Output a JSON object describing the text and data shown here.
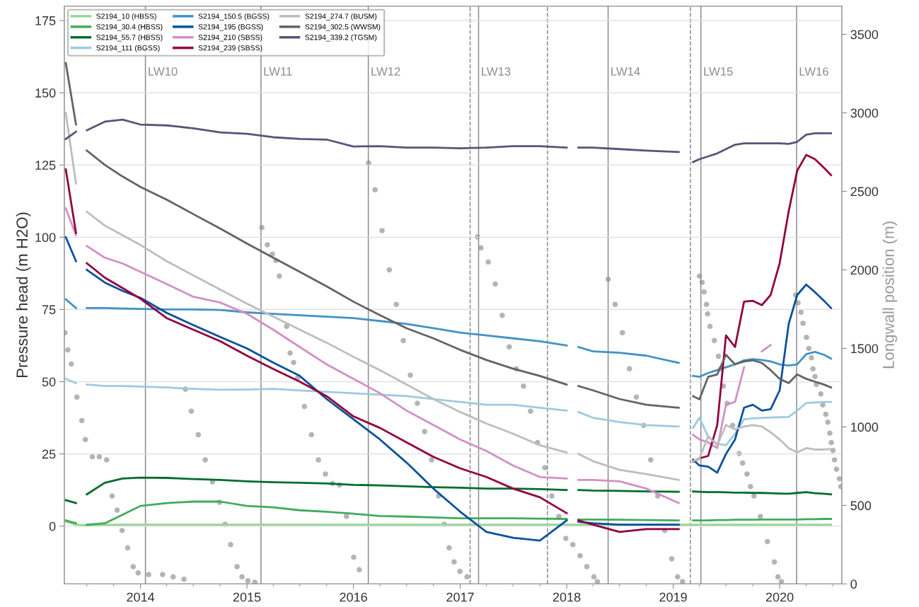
{
  "chart_data": {
    "type": "line",
    "ylabel": "Pressure head (m H2O)",
    "y2label": "Longwall position (m)",
    "x": [
      "2013-04-20",
      "2013-05-25",
      "2013-06-15",
      "2013-07-01",
      "2013-09-01",
      "2013-11-01",
      "2014-01-01",
      "2014-04-01",
      "2014-07-01",
      "2014-10-01",
      "2015-01-01",
      "2015-04-01",
      "2015-07-01",
      "2015-10-01",
      "2016-01-01",
      "2016-04-01",
      "2016-07-01",
      "2016-10-01",
      "2017-01-01",
      "2017-04-01",
      "2017-07-01",
      "2017-10-01",
      "2018-01-01",
      "2018-01-20",
      "2018-02-10",
      "2018-04-01",
      "2018-07-01",
      "2018-10-01",
      "2019-01-20",
      "2019-02-15",
      "2019-03-10",
      "2019-04-01",
      "2019-05-01",
      "2019-06-01",
      "2019-07-01",
      "2019-08-01",
      "2019-09-01",
      "2019-10-01",
      "2019-11-01",
      "2019-12-01",
      "2020-01-01",
      "2020-02-01",
      "2020-03-01",
      "2020-04-01",
      "2020-05-01",
      "2020-06-01",
      "2020-06-25"
    ],
    "series": [
      {
        "name": "S2194_10 (HBSS)",
        "color": "#98d594",
        "values": [
          1.5,
          0.5,
          0.4,
          0.3,
          0.5,
          0.5,
          0.5,
          0.5,
          0.5,
          0.5,
          0.5,
          0.5,
          0.5,
          0.5,
          0.5,
          0.5,
          0.5,
          0.5,
          0.5,
          0.5,
          0.5,
          0.5,
          0.5,
          0.5,
          0.5,
          0.5,
          0.5,
          0.5,
          0.5,
          0.5,
          0.5,
          0.5,
          0.5,
          0.5,
          0.5,
          0.5,
          0.5,
          0.5,
          0.5,
          0.5,
          0.5,
          0.5,
          0.5,
          0.5,
          0.5,
          0.5,
          0.5
        ]
      },
      {
        "name": "S2194_30.4 (HBSS)",
        "color": "#41ab5d",
        "values": [
          2,
          1,
          null,
          0.5,
          1,
          4,
          7,
          8,
          8.5,
          8.5,
          7,
          6.5,
          5.5,
          5,
          4.3,
          3.5,
          3.3,
          3,
          2.7,
          2.7,
          2.7,
          2.6,
          2.5,
          null,
          2.3,
          2.3,
          2.2,
          2.1,
          2,
          null,
          2,
          2,
          2,
          2.1,
          2.1,
          2.2,
          2.2,
          2.2,
          2.3,
          2.3,
          2.3,
          2.3,
          2.3,
          2.4,
          2.4,
          2.5,
          2.5
        ]
      },
      {
        "name": "S2194_55.7 (HBSS)",
        "color": "#006d2c",
        "values": [
          9,
          8,
          null,
          11,
          15,
          16.5,
          16.8,
          16.7,
          16.3,
          16,
          15.5,
          15.2,
          15,
          14.8,
          14.3,
          14.1,
          13.8,
          13.5,
          13.3,
          13,
          13,
          12.8,
          12.5,
          null,
          12.5,
          12.3,
          12.2,
          12,
          11.9,
          null,
          12,
          11.9,
          11.8,
          11.8,
          11.7,
          11.6,
          11.6,
          11.5,
          11.5,
          11.4,
          11.3,
          11.2,
          11.5,
          11.8,
          11.4,
          11.2,
          11
        ]
      },
      {
        "name": "S2194_111 (BGSS)",
        "color": "#9ecae1",
        "values": [
          51,
          49.5,
          null,
          49,
          48.5,
          48.5,
          48.3,
          48,
          47.5,
          47.2,
          47.3,
          47.5,
          47,
          46.5,
          46,
          45.5,
          45,
          44,
          43,
          42,
          42,
          41,
          40,
          null,
          39.5,
          37.5,
          36,
          35,
          34.5,
          null,
          34,
          37.5,
          31,
          28.5,
          28,
          32,
          37,
          37.3,
          37.5,
          37.6,
          37.7,
          37.8,
          40,
          42.6,
          42.8,
          43,
          43
        ]
      },
      {
        "name": "S2194_150.5 (BGSS)",
        "color": "#4292c6",
        "values": [
          78.5,
          75.5,
          null,
          75.5,
          75.5,
          75.3,
          75.2,
          75,
          75,
          74.8,
          74,
          73.5,
          73,
          72.5,
          72,
          71,
          70,
          68.5,
          67,
          66,
          65,
          64,
          62.5,
          null,
          62,
          60.5,
          60,
          59,
          56.5,
          null,
          52,
          51.7,
          53,
          54,
          55,
          56,
          57.4,
          57.8,
          57.5,
          57,
          56,
          55.6,
          56,
          59.5,
          60.3,
          59.3,
          58
        ]
      },
      {
        "name": "S2194_195 (BGSS)",
        "color": "#08519c",
        "values": [
          100,
          91.7,
          null,
          88.7,
          84.3,
          81.4,
          79,
          73.8,
          69.6,
          65.5,
          61.5,
          56.6,
          52,
          44,
          37,
          30,
          22,
          13,
          5,
          -2,
          -4,
          -5,
          2,
          null,
          1.5,
          1,
          0.5,
          0.5,
          0.5,
          null,
          23,
          21,
          20.6,
          18.5,
          25,
          30,
          41,
          42,
          40,
          40.5,
          47,
          70,
          80,
          83.6,
          81,
          78,
          75.5
        ]
      },
      {
        "name": "S2194_210 (SBSS)",
        "color": "#d38fc6",
        "values": [
          110,
          100.7,
          null,
          97,
          92.9,
          90.9,
          88,
          83.8,
          79.4,
          77.4,
          73.5,
          68,
          62,
          56,
          51,
          46,
          40,
          35,
          30,
          26,
          21,
          17,
          16.5,
          null,
          16,
          16,
          15.5,
          13,
          8,
          null,
          31.6,
          30,
          29,
          27,
          42,
          43,
          55,
          null,
          60.5,
          62.7,
          null,
          null,
          null,
          null,
          null,
          null,
          null
        ]
      },
      {
        "name": "S2194_239 (SBSS)",
        "color": "#91003f",
        "values": [
          123.5,
          101.5,
          null,
          91,
          86,
          82.4,
          78.7,
          72,
          68,
          64,
          59,
          54.4,
          50,
          45,
          38,
          34,
          29,
          24,
          20,
          17,
          13,
          10,
          4.5,
          null,
          2,
          0.5,
          -2,
          -1,
          -1,
          null,
          22.3,
          23.5,
          24.3,
          35,
          66,
          62,
          77.7,
          78,
          76.5,
          80,
          91,
          109,
          123,
          128.5,
          127,
          124,
          121.5
        ]
      },
      {
        "name": "S2194_274.7 (BUSM)",
        "color": "#bdbdbd",
        "values": [
          143,
          118.6,
          null,
          108.8,
          104,
          100.7,
          97.3,
          91.7,
          86.8,
          81.9,
          77,
          72.5,
          68,
          63.5,
          58.6,
          54,
          49,
          44,
          39.5,
          35.5,
          32,
          28,
          25.5,
          null,
          25,
          22.5,
          19.5,
          18,
          16,
          null,
          22.5,
          23.5,
          31,
          28,
          35,
          33.5,
          34.5,
          35,
          34.5,
          32.5,
          30,
          27,
          25.5,
          27,
          26.5,
          26.5,
          26.7
        ]
      },
      {
        "name": "S2194_302.5 (WWSM)",
        "color": "#636363",
        "values": [
          160.3,
          139,
          null,
          130,
          125,
          121,
          117.4,
          113,
          108,
          103,
          97.8,
          92.9,
          88,
          83,
          77.7,
          73,
          68.5,
          65,
          61,
          57.5,
          54.5,
          52,
          49,
          null,
          48.5,
          47,
          44,
          42,
          41,
          null,
          45,
          43.9,
          51.7,
          52.5,
          59.3,
          56,
          57,
          57.4,
          56.5,
          54,
          51,
          49.5,
          52.5,
          51,
          50,
          49,
          48
        ]
      },
      {
        "name": "S2194_339.2 (TGSM)",
        "color": "#54567a",
        "values": [
          134,
          136.5,
          null,
          137,
          140,
          140.7,
          139,
          138.7,
          137.7,
          136.3,
          135.8,
          134.6,
          134,
          133.8,
          131.4,
          131.5,
          131,
          131,
          130.8,
          131,
          131.5,
          131.5,
          131,
          null,
          131,
          131,
          130.5,
          130,
          129.5,
          null,
          126,
          127,
          128,
          129,
          130.5,
          132,
          132.5,
          132.5,
          132.5,
          132.5,
          132.5,
          132.3,
          133,
          135.5,
          136,
          136,
          136
        ]
      },
      {
        "type": "scatter",
        "axis": "y2",
        "color": "#b4b4b4",
        "marker": "circle",
        "x": [
          "2013-04-17",
          "2013-04-27",
          "2013-05-09",
          "2013-05-28",
          "2013-06-14",
          "2013-06-26",
          "2013-07-20",
          "2013-08-13",
          "2013-09-07",
          "2013-09-26",
          "2013-10-13",
          "2013-10-30",
          "2013-11-18",
          "2013-12-07",
          "2013-12-24",
          "2014-01-29",
          "2014-03-18",
          "2014-04-23",
          "2014-05-30",
          "2014-06-04",
          "2014-06-24",
          "2014-07-18",
          "2014-08-11",
          "2014-09-05",
          "2014-09-29",
          "2014-10-18",
          "2014-11-06",
          "2014-11-28",
          "2014-12-15",
          "2015-01-04",
          "2015-01-28",
          "2015-02-21",
          "2015-03-12",
          "2015-03-29",
          "2015-04-10",
          "2015-04-22",
          "2015-05-17",
          "2015-05-29",
          "2015-06-10",
          "2015-06-23",
          "2015-07-17",
          "2015-08-10",
          "2015-09-03",
          "2015-09-27",
          "2015-10-21",
          "2015-11-14",
          "2015-12-08",
          "2016-01-02",
          "2016-01-21",
          "2016-02-22",
          "2016-03-15",
          "2016-04-08",
          "2016-05-03",
          "2016-05-27",
          "2016-06-20",
          "2016-07-14",
          "2016-08-07",
          "2016-09-01",
          "2016-09-25",
          "2016-10-19",
          "2016-11-07",
          "2016-11-24",
          "2016-12-11",
          "2016-12-31",
          "2017-01-24",
          "2017-03-01",
          "2017-03-13",
          "2017-04-07",
          "2017-05-01",
          "2017-05-25",
          "2017-06-18",
          "2017-07-12",
          "2017-08-06",
          "2017-08-30",
          "2017-09-23",
          "2017-10-18",
          "2017-11-11",
          "2017-12-05",
          "2017-12-29",
          "2018-01-22",
          "2018-02-16",
          "2018-03-11",
          "2018-04-04",
          "2018-04-16",
          "2018-05-23",
          "2018-06-16",
          "2018-07-11",
          "2018-08-04",
          "2018-08-28",
          "2018-09-22",
          "2018-10-16",
          "2018-11-09",
          "2018-12-03",
          "2018-12-27",
          "2019-01-16",
          "2019-02-02",
          "2019-04-01",
          "2019-04-10",
          "2019-04-17",
          "2019-04-25",
          "2019-04-29",
          "2019-05-07",
          "2019-05-22",
          "2019-06-05",
          "2019-06-13",
          "2019-06-22",
          "2019-07-05",
          "2019-07-24",
          "2019-08-15",
          "2019-08-27",
          "2019-09-11",
          "2019-09-23",
          "2019-10-05",
          "2019-10-27",
          "2019-11-20",
          "2019-12-14",
          "2019-12-26",
          "2020-01-07",
          "2020-02-25",
          "2020-03-04",
          "2020-03-14",
          "2020-03-21",
          "2020-04-02",
          "2020-04-10",
          "2020-04-19",
          "2020-04-24",
          "2020-05-01",
          "2020-05-06",
          "2020-05-21",
          "2020-05-28",
          "2020-06-07",
          "2020-06-14",
          "2020-06-21",
          "2020-06-26",
          "2020-07-02",
          "2020-07-07",
          "2020-07-14",
          "2020-07-24",
          "2020-07-29"
        ],
        "values": [
          1600,
          1490,
          1400,
          1190,
          1040,
          920,
          810,
          810,
          790,
          560,
          470,
          340,
          230,
          110,
          70,
          60,
          60,
          45,
          30,
          1240,
          1100,
          950,
          790,
          650,
          520,
          380,
          250,
          110,
          45,
          20,
          10,
          2270,
          2160,
          2100,
          2060,
          1960,
          1640,
          1470,
          1410,
          1310,
          1130,
          950,
          790,
          700,
          640,
          630,
          430,
          170,
          90,
          2680,
          2510,
          2250,
          2000,
          1780,
          1550,
          1330,
          1150,
          970,
          790,
          560,
          380,
          230,
          140,
          80,
          45,
          2210,
          2140,
          2050,
          1910,
          1710,
          1510,
          1370,
          1260,
          1100,
          900,
          740,
          560,
          430,
          290,
          250,
          180,
          110,
          45,
          15,
          1940,
          1780,
          1600,
          1370,
          1190,
          1010,
          790,
          560,
          340,
          160,
          45,
          15,
          1960,
          1920,
          1860,
          1780,
          1720,
          1640,
          1550,
          1450,
          1370,
          1260,
          1150,
          1010,
          830,
          770,
          700,
          620,
          560,
          430,
          270,
          140,
          45,
          15,
          1840,
          1790,
          1730,
          1660,
          1570,
          1500,
          1440,
          1370,
          1320,
          1270,
          1210,
          1140,
          1080,
          1030,
          960,
          900,
          850,
          790,
          730,
          670,
          620
        ]
      }
    ],
    "xlim": [
      "2013-04-15",
      "2020-08-01"
    ],
    "xticks": [
      {
        "value": "2013-07-01",
        "label": null
      },
      {
        "value": "2013-10-01",
        "label": null
      },
      {
        "value": "2014-01-01",
        "label": "2014"
      },
      {
        "value": "2014-04-01",
        "label": null
      },
      {
        "value": "2014-07-01",
        "label": null
      },
      {
        "value": "2014-10-01",
        "label": null
      },
      {
        "value": "2015-01-01",
        "label": "2015"
      },
      {
        "value": "2015-04-01",
        "label": null
      },
      {
        "value": "2015-07-01",
        "label": null
      },
      {
        "value": "2015-10-01",
        "label": null
      },
      {
        "value": "2016-01-01",
        "label": "2016"
      },
      {
        "value": "2016-04-01",
        "label": null
      },
      {
        "value": "2016-07-01",
        "label": null
      },
      {
        "value": "2016-10-01",
        "label": null
      },
      {
        "value": "2017-01-01",
        "label": "2017"
      },
      {
        "value": "2017-04-01",
        "label": null
      },
      {
        "value": "2017-07-01",
        "label": null
      },
      {
        "value": "2017-10-01",
        "label": null
      },
      {
        "value": "2018-01-01",
        "label": "2018"
      },
      {
        "value": "2018-04-01",
        "label": null
      },
      {
        "value": "2018-07-01",
        "label": null
      },
      {
        "value": "2018-10-01",
        "label": null
      },
      {
        "value": "2019-01-01",
        "label": "2019"
      },
      {
        "value": "2019-04-01",
        "label": null
      },
      {
        "value": "2019-07-01",
        "label": null
      },
      {
        "value": "2019-10-01",
        "label": null
      },
      {
        "value": "2020-01-01",
        "label": "2020"
      },
      {
        "value": "2020-04-01",
        "label": null
      },
      {
        "value": "2020-07-01",
        "label": null
      }
    ],
    "ylim": [
      -20,
      180
    ],
    "yticks": [
      0,
      25,
      50,
      75,
      100,
      125,
      150,
      175
    ],
    "y2lim": [
      0,
      3680
    ],
    "y2ticks": [
      0,
      500,
      1000,
      1500,
      2000,
      2500,
      3000,
      3500
    ],
    "ref_lines": [
      {
        "axis": "x",
        "value": "2014-01-18",
        "label": "LW10",
        "color": "#8c8c8c",
        "line_style": "solid"
      },
      {
        "axis": "x",
        "value": "2015-02-18",
        "label": "LW11",
        "color": "#8c8c8c",
        "line_style": "solid"
      },
      {
        "axis": "x",
        "value": "2016-02-21",
        "label": "LW12",
        "color": "#8c8c8c",
        "line_style": "solid"
      },
      {
        "axis": "x",
        "value": "2017-02-04",
        "label": null,
        "color": "#8c8c8c",
        "line_style": "dashed"
      },
      {
        "axis": "x",
        "value": "2017-03-05",
        "label": "LW13",
        "color": "#8c8c8c",
        "line_style": "solid"
      },
      {
        "axis": "x",
        "value": "2017-10-27",
        "label": null,
        "color": "#8c8c8c",
        "line_style": "dashed"
      },
      {
        "axis": "x",
        "value": "2018-05-23",
        "label": "LW14",
        "color": "#8c8c8c",
        "line_style": "solid"
      },
      {
        "axis": "x",
        "value": "2019-03-01",
        "label": null,
        "color": "#8c8c8c",
        "line_style": "dashed"
      },
      {
        "axis": "x",
        "value": "2019-04-06",
        "label": "LW15",
        "color": "#8c8c8c",
        "line_style": "solid"
      },
      {
        "axis": "x",
        "value": "2020-02-28",
        "label": "LW16",
        "color": "#8c8c8c",
        "line_style": "solid"
      }
    ],
    "grid": "y",
    "legend": "top left",
    "marker": "none",
    "line_style": "solid"
  }
}
